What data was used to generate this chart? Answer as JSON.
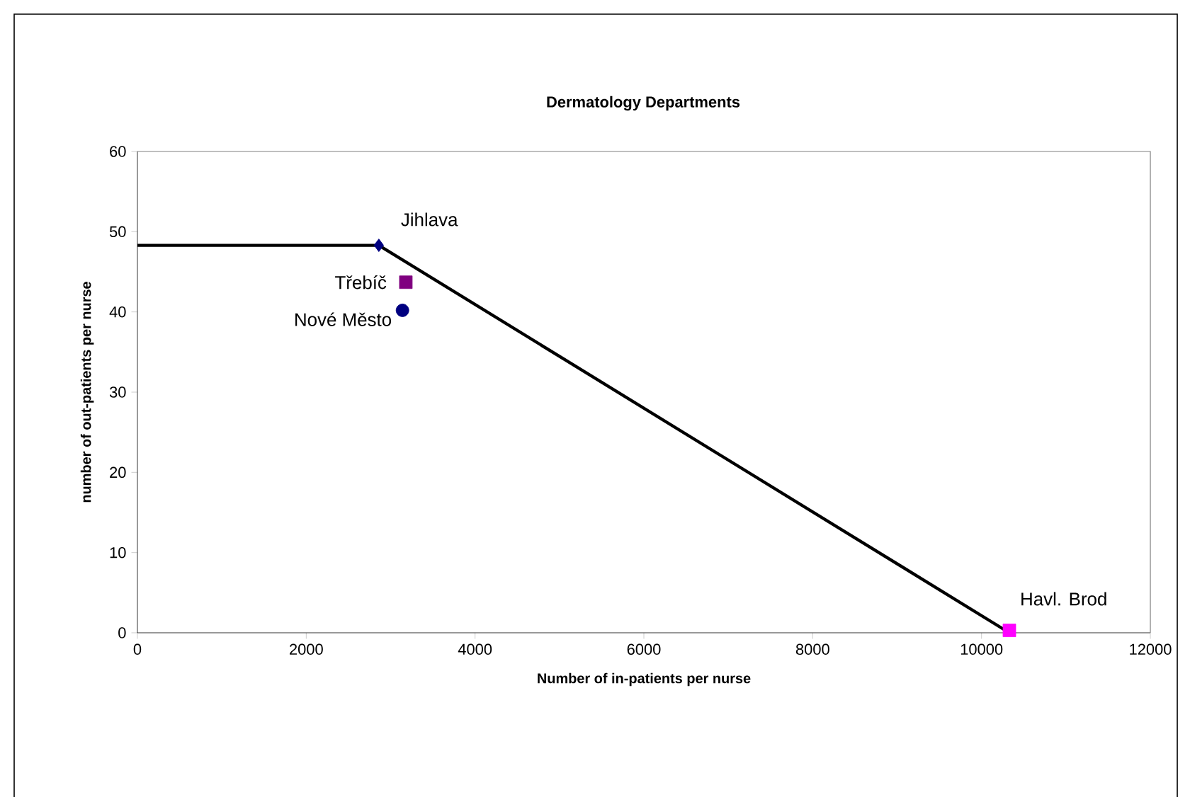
{
  "chart_data": {
    "type": "scatter",
    "title": "Dermatology Departments",
    "xlabel": "Number of in-patients per nurse",
    "ylabel": "number of out-patients per nurse",
    "xlim": [
      0,
      12000
    ],
    "ylim": [
      0,
      60
    ],
    "xticks": [
      0,
      2000,
      4000,
      6000,
      8000,
      10000,
      12000
    ],
    "yticks": [
      0,
      10,
      20,
      30,
      40,
      50,
      60
    ],
    "grid": false,
    "series": [
      {
        "type": "line",
        "color": "#000000",
        "marker": "none",
        "x": [
          0,
          2860,
          10330
        ],
        "values": [
          48.3,
          48.3,
          0
        ]
      },
      {
        "name": "Jihlava",
        "color": "#000080",
        "marker": "diamond",
        "x": [
          2860
        ],
        "values": [
          48.3
        ]
      },
      {
        "name": "Třebíč",
        "color": "#800080",
        "marker": "square",
        "x": [
          3180
        ],
        "values": [
          43.7
        ]
      },
      {
        "name": "Nové Město",
        "color": "#000080",
        "marker": "circle",
        "x": [
          3140
        ],
        "values": [
          40.2
        ]
      },
      {
        "name": "Havl. Brod",
        "color": "#ff00ff",
        "marker": "square",
        "x": [
          10330
        ],
        "values": [
          0.3
        ]
      }
    ]
  }
}
